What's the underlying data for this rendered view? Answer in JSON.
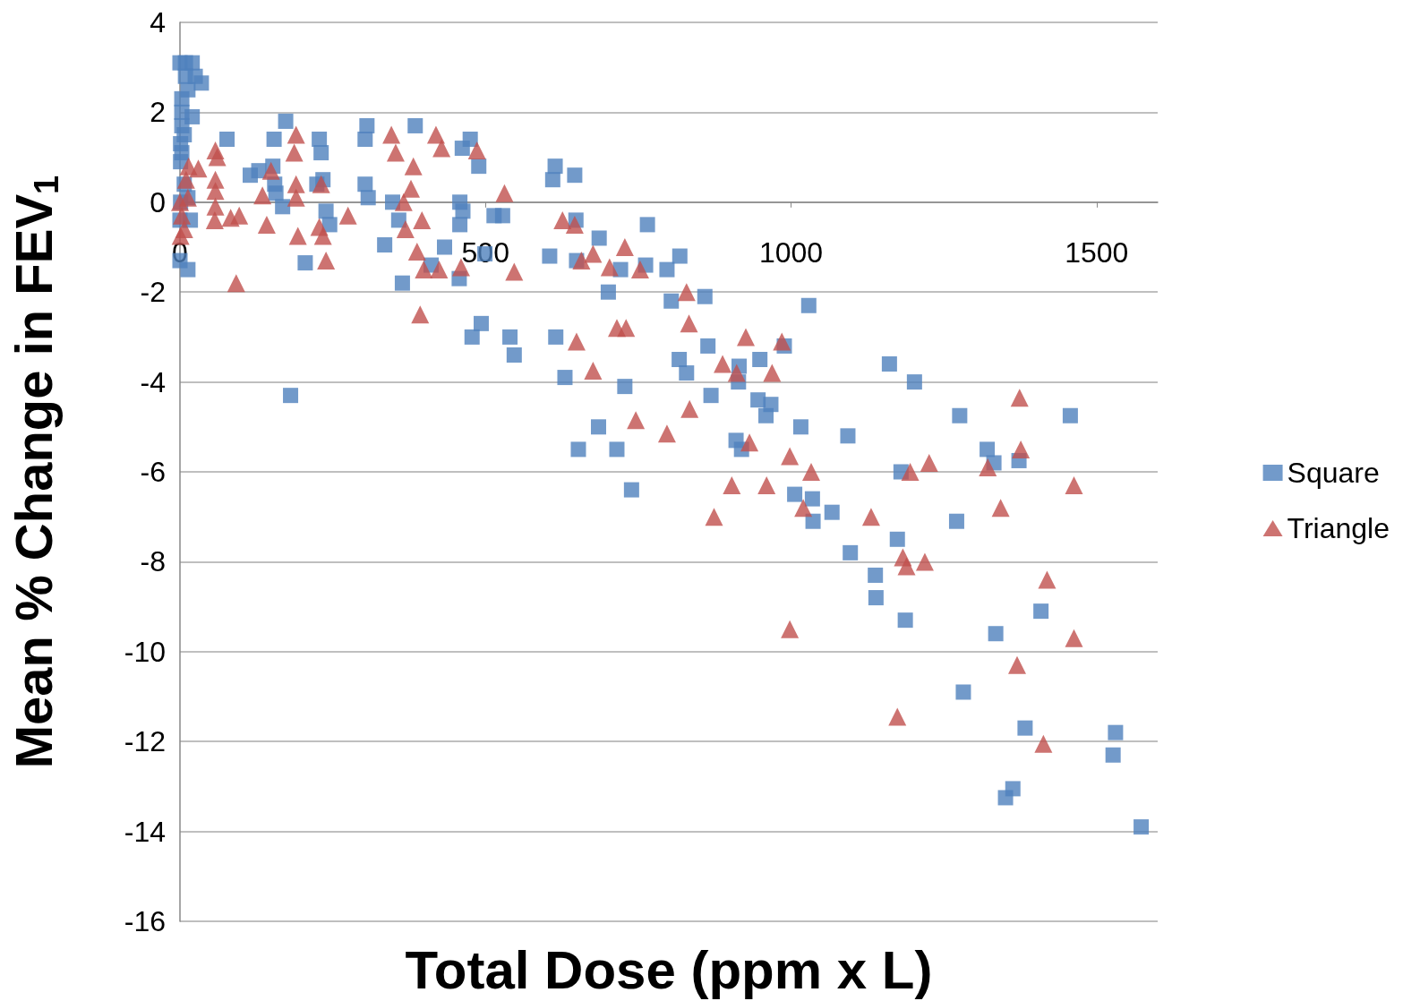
{
  "chart_data": {
    "type": "scatter",
    "xlabel": "Total Dose (ppm x L)",
    "ylabel": "Mean % Change in FEV$_{1}$",
    "xlim": [
      0,
      1600
    ],
    "xticks": [
      0,
      500,
      1000,
      1500
    ],
    "ylim": [
      -16,
      4
    ],
    "yticks": [
      -16,
      -14,
      -12,
      -10,
      -8,
      -6,
      -4,
      -2,
      0,
      2,
      4
    ],
    "grid": "y",
    "legend": "right",
    "series": [
      {
        "name": "Square",
        "color": "#4f81bd",
        "marker": "square",
        "x": [
          0,
          9,
          20,
          9,
          25,
          35,
          13,
          3,
          3,
          20,
          3,
          7,
          1,
          3,
          1,
          7,
          13,
          1,
          0,
          17,
          0,
          13,
          77,
          115,
          129,
          152,
          154,
          155,
          157,
          168,
          173,
          181,
          205,
          224,
          228,
          231,
          234,
          239,
          245,
          303,
          306,
          303,
          308,
          335,
          348,
          358,
          364,
          385,
          411,
          433,
          458,
          463,
          458,
          457,
          462,
          475,
          478,
          489,
          493,
          499,
          514,
          528,
          540,
          547,
          605,
          610,
          614,
          615,
          630,
          646,
          648,
          649,
          652,
          685,
          686,
          701,
          715,
          721,
          728,
          739,
          762,
          765,
          797,
          804,
          817,
          818,
          829,
          859,
          864,
          869,
          910,
          914,
          915,
          919,
          949,
          946,
          959,
          967,
          989,
          1006,
          1016,
          1029,
          1035,
          1036,
          1067,
          1093,
          1097,
          1138,
          1139,
          1161,
          1174,
          1180,
          1187,
          1202,
          1271,
          1276,
          1282,
          1321,
          1332,
          1335,
          1351,
          1363,
          1373,
          1383,
          1409,
          1457,
          1527,
          1531,
          1573
        ],
        "values": [
          3.1,
          3.1,
          3.1,
          2.8,
          2.8,
          2.65,
          2.5,
          2.3,
          2.0,
          1.9,
          1.7,
          1.5,
          1.3,
          1.1,
          0.9,
          0.4,
          0.1,
          0,
          -0.4,
          -0.4,
          -1.3,
          -1.5,
          1.4,
          0.6,
          0.7,
          0.8,
          1.4,
          0.4,
          0.2,
          -0.1,
          1.8,
          -4.3,
          -1.35,
          0.4,
          1.4,
          1.1,
          0.5,
          -0.2,
          -0.5,
          1.4,
          1.7,
          0.4,
          0.1,
          -0.95,
          0,
          -0.4,
          -1.8,
          1.7,
          -1.4,
          -1.0,
          0,
          -0.2,
          -0.5,
          -1.7,
          1.2,
          1.4,
          -3.0,
          0.8,
          -2.7,
          -1.15,
          -0.3,
          -0.3,
          -3.0,
          -3.4,
          -1.2,
          0.5,
          0.8,
          -3.0,
          -3.9,
          0.6,
          -0.4,
          -1.3,
          -5.5,
          -5.0,
          -0.8,
          -2.0,
          -5.5,
          -1.5,
          -4.1,
          -6.4,
          -1.4,
          -0.5,
          -1.5,
          -2.2,
          -3.5,
          -1.2,
          -3.8,
          -2.1,
          -3.2,
          -4.3,
          -5.3,
          -4.0,
          -3.65,
          -5.5,
          -3.5,
          -4.4,
          -4.75,
          -4.5,
          -3.2,
          -6.5,
          -5.0,
          -2.3,
          -6.6,
          -7.1,
          -6.9,
          -5.2,
          -7.8,
          -8.3,
          -8.8,
          -3.6,
          -7.5,
          -6.0,
          -9.3,
          -4.0,
          -7.1,
          -4.75,
          -10.9,
          -5.5,
          -5.8,
          -9.6,
          -13.25,
          -13.05,
          -5.75,
          -11.7,
          -9.1,
          -4.75,
          -12.3,
          -11.8,
          -13.9
        ]
      },
      {
        "name": "Triangle",
        "color": "#c0504d",
        "marker": "triangle",
        "x": [
          0,
          3,
          7,
          1,
          13,
          10,
          14,
          30,
          58,
          61,
          58,
          58,
          58,
          57,
          83,
          97,
          92,
          135,
          142,
          149,
          187,
          190,
          193,
          190,
          190,
          231,
          228,
          234,
          239,
          275,
          346,
          353,
          366,
          369,
          378,
          382,
          388,
          396,
          393,
          399,
          419,
          428,
          424,
          460,
          486,
          531,
          547,
          626,
          646,
          649,
          657,
          676,
          676,
          703,
          715,
          730,
          728,
          746,
          753,
          797,
          829,
          833,
          834,
          874,
          888,
          903,
          911,
          926,
          932,
          960,
          969,
          985,
          998,
          998,
          1020,
          1033,
          1131,
          1174,
          1183,
          1189,
          1195,
          1219,
          1226,
          1322,
          1343,
          1370,
          1374,
          1376,
          1413,
          1419,
          1463,
          1463
        ],
        "values": [
          0,
          -0.3,
          -0.6,
          -0.75,
          0.1,
          0.5,
          0.8,
          0.75,
          1.15,
          1.0,
          0.5,
          0.25,
          -0.1,
          -0.4,
          -0.35,
          -0.3,
          -1.8,
          0.15,
          -0.5,
          0.7,
          1.1,
          1.5,
          -0.75,
          0.4,
          0.1,
          0.4,
          -0.55,
          -0.75,
          -1.3,
          -0.3,
          1.5,
          1.1,
          0,
          -0.6,
          0.3,
          0.8,
          -1.1,
          -0.4,
          -2.5,
          -1.5,
          1.5,
          1.2,
          -1.5,
          -1.45,
          1.15,
          0.2,
          -1.55,
          -0.4,
          -0.5,
          -3.1,
          -1.3,
          -1.15,
          -3.75,
          -1.45,
          -2.8,
          -2.8,
          -1.0,
          -4.85,
          -1.5,
          -5.15,
          -2.0,
          -2.7,
          -4.6,
          -7.0,
          -3.6,
          -6.3,
          -3.8,
          -3.0,
          -5.35,
          -6.3,
          -3.8,
          -3.1,
          -9.5,
          -5.65,
          -6.8,
          -6.0,
          -7.0,
          -11.45,
          -7.9,
          -8.1,
          -6.0,
          -8.0,
          -5.8,
          -5.9,
          -6.8,
          -10.3,
          -4.35,
          -5.5,
          -12.05,
          -8.4,
          -6.3,
          -9.7
        ]
      }
    ]
  }
}
